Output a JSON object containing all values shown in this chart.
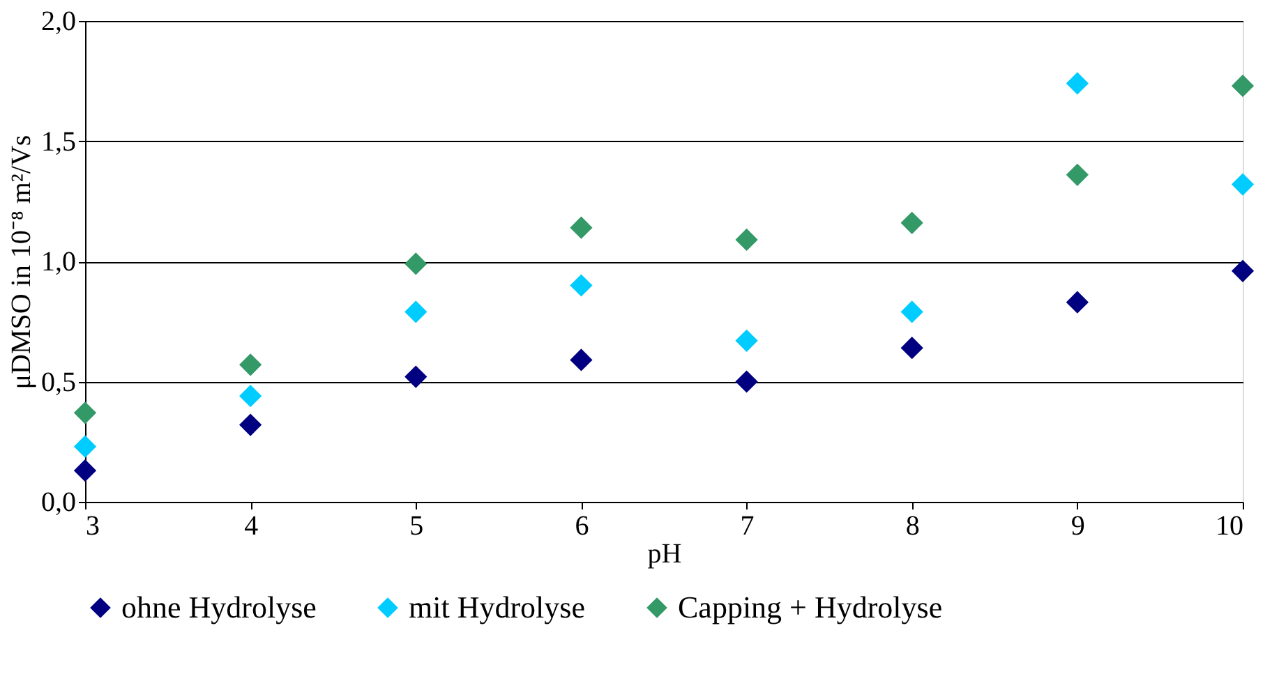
{
  "chart_data": {
    "type": "scatter",
    "xlabel": "pH",
    "ylabel": "μDMSO in 10⁻⁸ m²/Vs",
    "x": [
      3,
      4,
      5,
      6,
      7,
      8,
      9,
      10
    ],
    "series": [
      {
        "name": "ohne Hydrolyse",
        "color": "#000080",
        "values": [
          0.13,
          0.32,
          0.52,
          0.59,
          0.5,
          0.64,
          0.83,
          0.96
        ]
      },
      {
        "name": "mit Hydrolyse",
        "color": "#00ccff",
        "values": [
          0.23,
          0.44,
          0.79,
          0.9,
          0.67,
          0.79,
          1.74,
          1.32
        ]
      },
      {
        "name": "Capping + Hydrolyse",
        "color": "#339966",
        "values": [
          0.37,
          0.57,
          0.99,
          1.14,
          1.09,
          1.16,
          1.36,
          1.73
        ]
      }
    ],
    "xlim": [
      3,
      10
    ],
    "xticks": [
      3,
      4,
      5,
      6,
      7,
      8,
      9,
      10
    ],
    "ylim": [
      0,
      2
    ],
    "yticks": [
      {
        "value": 0,
        "label": "0,0"
      },
      {
        "value": 0.5,
        "label": "0,5"
      },
      {
        "value": 1,
        "label": "1,0"
      },
      {
        "value": 1.5,
        "label": "1,5"
      },
      {
        "value": 2,
        "label": "2,0"
      }
    ],
    "grid": "y",
    "legend": "bottom",
    "marker": "diamond"
  }
}
